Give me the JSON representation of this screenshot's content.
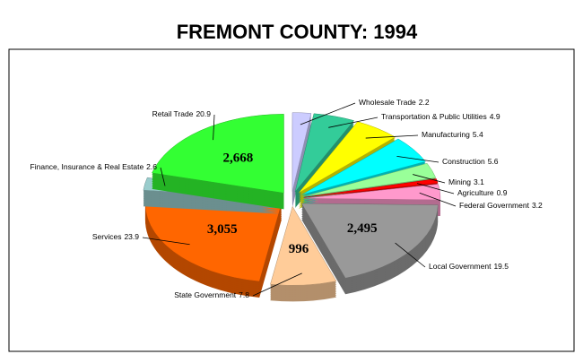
{
  "chart_data": {
    "type": "pie",
    "title": "FREMONT COUNTY:  1994",
    "categories": [
      "Wholesale Trade",
      "Transportation & Public Utilities",
      "Manufacturing",
      "Construction",
      "Mining",
      "Agriculture",
      "Federal Government",
      "Local Government",
      "State Government",
      "Services",
      "Finance, Insurance & Real Estate",
      "Retail Trade"
    ],
    "values": [
      2.2,
      4.9,
      5.4,
      5.6,
      3.1,
      0.9,
      3.2,
      19.5,
      7.8,
      23.9,
      2.6,
      20.9
    ],
    "colors": [
      "#ccccff",
      "#33cc99",
      "#ffff00",
      "#00ffff",
      "#99ff99",
      "#ff0000",
      "#ff99cc",
      "#999999",
      "#ffcc99",
      "#ff6600",
      "#99cccc",
      "#33ff33"
    ],
    "counts": [
      null,
      null,
      null,
      null,
      null,
      null,
      null,
      2495,
      996,
      3055,
      null,
      2668
    ],
    "count_labels": [
      null,
      null,
      null,
      null,
      null,
      null,
      null,
      "2,495",
      "996",
      "3,055",
      null,
      "2,668"
    ]
  }
}
